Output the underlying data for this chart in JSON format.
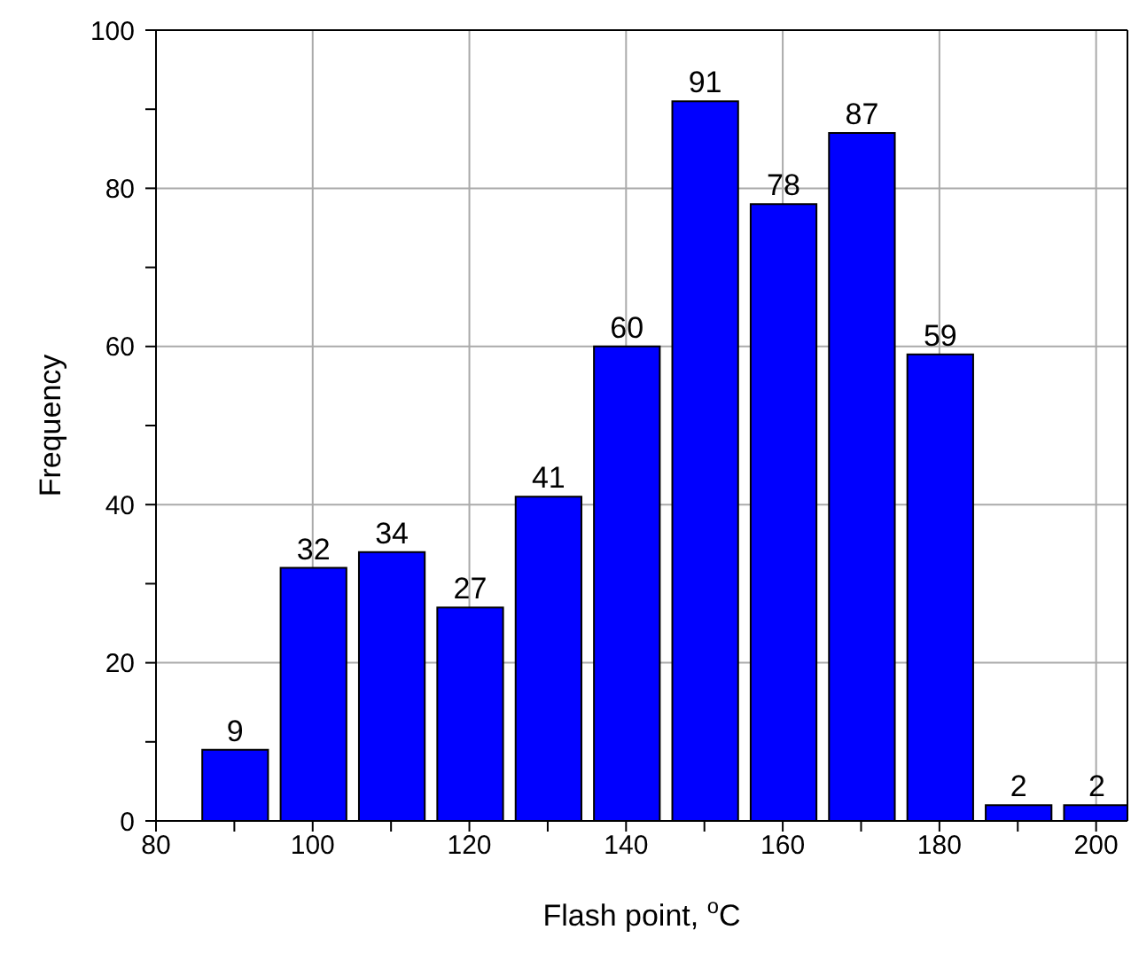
{
  "chart_data": {
    "type": "bar",
    "xlabel": "Flash point, $^{o}$C",
    "ylabel": "Frequency",
    "x": [
      90,
      100,
      110,
      120,
      130,
      140,
      150,
      160,
      170,
      180,
      190,
      200
    ],
    "values": [
      9,
      32,
      34,
      27,
      41,
      60,
      91,
      78,
      87,
      59,
      2,
      2
    ],
    "color": "#0000ff",
    "data_labels": true,
    "grid": true,
    "xlim": [
      80,
      204
    ],
    "xticks": [
      80,
      {
        "value": 90,
        "label": null
      },
      100,
      {
        "value": 110,
        "label": null
      },
      120,
      {
        "value": 130,
        "label": null
      },
      140,
      {
        "value": 150,
        "label": null
      },
      160,
      {
        "value": 170,
        "label": null
      },
      180,
      {
        "value": 190,
        "label": null
      },
      200
    ],
    "ylim": [
      0,
      100
    ],
    "yticks": [
      0,
      {
        "value": 10,
        "label": null
      },
      20,
      {
        "value": 30,
        "label": null
      },
      40,
      {
        "value": 50,
        "label": null
      },
      60,
      {
        "value": 70,
        "label": null
      },
      80,
      {
        "value": 90,
        "label": null
      },
      100
    ]
  }
}
